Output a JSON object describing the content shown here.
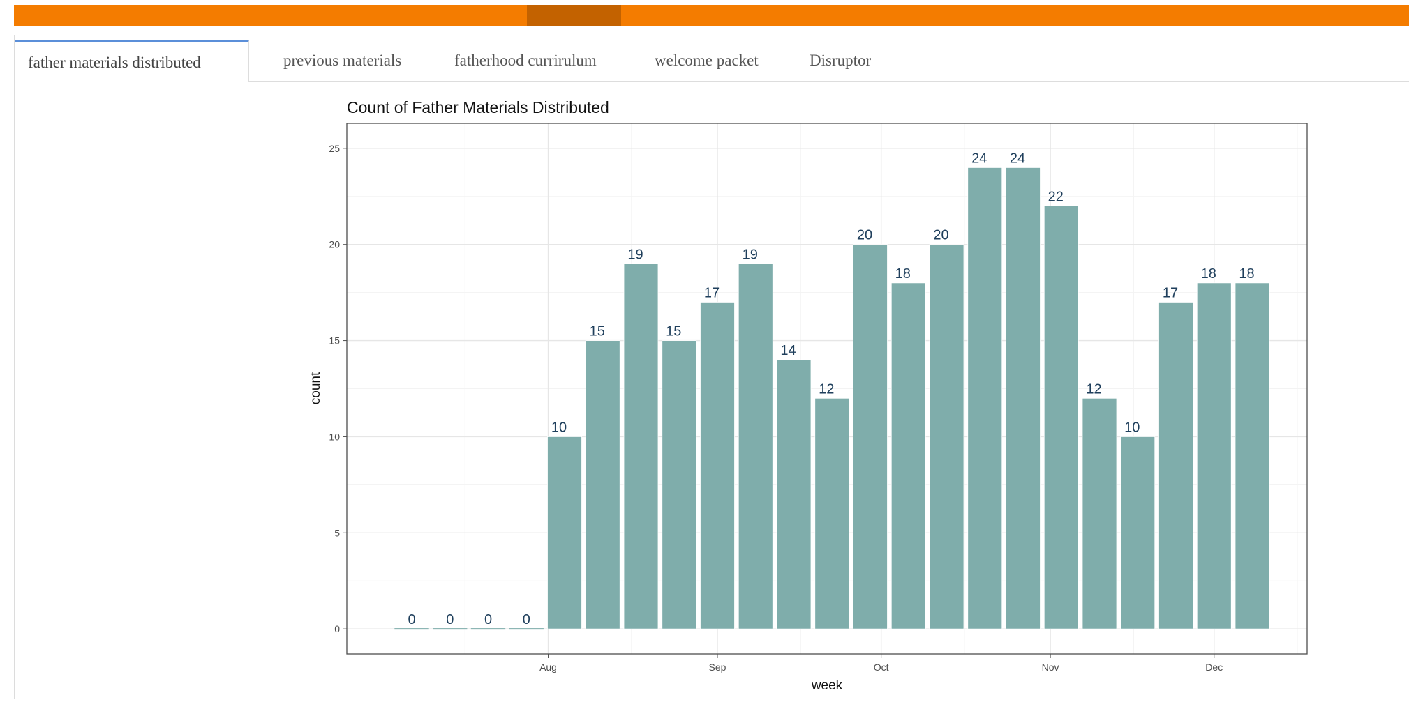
{
  "tabs": [
    {
      "label": "father materials distributed",
      "active": true
    },
    {
      "label": "previous materials",
      "active": false
    },
    {
      "label": "fatherhood currirulum",
      "active": false
    },
    {
      "label": "welcome packet",
      "active": false
    },
    {
      "label": "Disruptor",
      "active": false
    }
  ],
  "colors": {
    "header_bar": "#f47c00",
    "header_active": "#c36200",
    "bar_fill": "#7fadab",
    "label_text": "#1f3f5c",
    "active_tab_indicator": "#5b8fd9"
  },
  "chart_data": {
    "type": "bar",
    "title": "Count of Father Materials Distributed",
    "xlabel": "week",
    "ylabel": "count",
    "ylim": [
      -1.3,
      26.3
    ],
    "yticks": [
      0,
      5,
      10,
      15,
      20,
      25
    ],
    "x_month_ticks": [
      {
        "label": "Aug",
        "date": "2019-08-01"
      },
      {
        "label": "Sep",
        "date": "2019-09-01"
      },
      {
        "label": "Oct",
        "date": "2019-10-01"
      },
      {
        "label": "Nov",
        "date": "2019-11-01"
      },
      {
        "label": "Dec",
        "date": "2019-12-01"
      }
    ],
    "categories": [
      "2019-07-07",
      "2019-07-14",
      "2019-07-21",
      "2019-07-28",
      "2019-08-04",
      "2019-08-11",
      "2019-08-18",
      "2019-08-25",
      "2019-09-01",
      "2019-09-08",
      "2019-09-15",
      "2019-09-22",
      "2019-09-29",
      "2019-10-06",
      "2019-10-13",
      "2019-10-20",
      "2019-10-27",
      "2019-11-03",
      "2019-11-10",
      "2019-11-17",
      "2019-11-24",
      "2019-12-01",
      "2019-12-08"
    ],
    "values": [
      0,
      0,
      0,
      0,
      10,
      15,
      19,
      15,
      17,
      19,
      14,
      12,
      20,
      18,
      20,
      24,
      24,
      22,
      12,
      10,
      17,
      18,
      18
    ],
    "value_labels": [
      "0",
      "0",
      "0",
      "0",
      "10",
      "15",
      "19",
      "15",
      "17",
      "19",
      "14",
      "12",
      "20",
      "18",
      "20",
      "24",
      "24",
      "22",
      "12",
      "10",
      "17",
      "18",
      "18"
    ],
    "grid": true,
    "legend": "none"
  }
}
